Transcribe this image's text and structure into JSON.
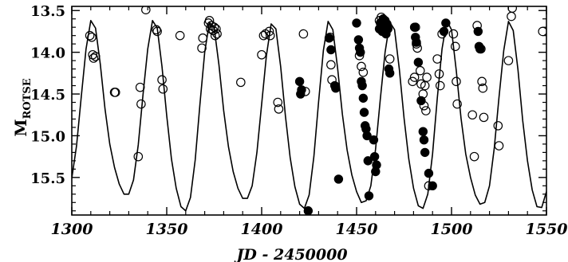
{
  "chart_data": {
    "type": "scatter",
    "title": "",
    "xlabel": "JD - 2450000",
    "ylabel_main": "M",
    "ylabel_sub": "ROTSE",
    "xlim": [
      1300,
      1550
    ],
    "ylim": [
      15.95,
      13.45
    ],
    "y_inverted": true,
    "x_ticks": [
      1300,
      1350,
      1400,
      1450,
      1500,
      1550
    ],
    "x_tick_labels": [
      "1300",
      "1350",
      "1400",
      "1450",
      "1500",
      "1550"
    ],
    "y_ticks": [
      13.5,
      14.0,
      14.5,
      15.0,
      15.5
    ],
    "y_tick_labels": [
      "13.5",
      "14.0",
      "14.5",
      "15.0",
      "15.5"
    ],
    "grid": false,
    "series": [
      {
        "marker": "open-circle",
        "points": [
          [
            1309.5,
            13.8
          ],
          [
            1310.5,
            13.82
          ],
          [
            1311.0,
            14.03
          ],
          [
            1311.5,
            14.07
          ],
          [
            1312.5,
            14.05
          ],
          [
            1322.5,
            14.48
          ],
          [
            1323.0,
            14.48
          ],
          [
            1335.0,
            15.25
          ],
          [
            1336.0,
            14.42
          ],
          [
            1336.5,
            14.62
          ],
          [
            1339.0,
            13.49
          ],
          [
            1344.5,
            13.73
          ],
          [
            1345.0,
            13.75
          ],
          [
            1347.5,
            14.33
          ],
          [
            1348.0,
            14.44
          ],
          [
            1357.0,
            13.8
          ],
          [
            1368.5,
            13.95
          ],
          [
            1369.0,
            13.83
          ],
          [
            1372.0,
            13.65
          ],
          [
            1372.5,
            13.62
          ],
          [
            1373.0,
            13.72
          ],
          [
            1373.5,
            13.68
          ],
          [
            1374.5,
            13.74
          ],
          [
            1375.0,
            13.7
          ],
          [
            1375.5,
            13.8
          ],
          [
            1376.0,
            13.72
          ],
          [
            1376.5,
            13.78
          ],
          [
            1389.0,
            14.36
          ],
          [
            1400.0,
            14.03
          ],
          [
            1401.0,
            13.8
          ],
          [
            1402.0,
            13.78
          ],
          [
            1404.0,
            13.75
          ],
          [
            1404.5,
            13.8
          ],
          [
            1408.5,
            14.6
          ],
          [
            1409.0,
            14.68
          ],
          [
            1422.0,
            13.78
          ],
          [
            1423.0,
            14.47
          ],
          [
            1436.0,
            13.82
          ],
          [
            1436.5,
            14.15
          ],
          [
            1437.0,
            14.33
          ],
          [
            1451.5,
            14.04
          ],
          [
            1452.5,
            14.17
          ],
          [
            1453.5,
            14.24
          ],
          [
            1462.0,
            13.62
          ],
          [
            1463.0,
            13.58
          ],
          [
            1467.5,
            14.08
          ],
          [
            1479.5,
            14.35
          ],
          [
            1480.5,
            14.3
          ],
          [
            1481.0,
            13.7
          ],
          [
            1481.5,
            13.9
          ],
          [
            1482.0,
            13.95
          ],
          [
            1483.5,
            14.22
          ],
          [
            1484.0,
            14.38
          ],
          [
            1485.0,
            14.5
          ],
          [
            1485.5,
            14.64
          ],
          [
            1486.0,
            14.4
          ],
          [
            1486.5,
            14.7
          ],
          [
            1487.0,
            14.3
          ],
          [
            1488.0,
            15.6
          ],
          [
            1492.5,
            14.08
          ],
          [
            1493.5,
            14.26
          ],
          [
            1494.0,
            14.4
          ],
          [
            1495.0,
            13.78
          ],
          [
            1501.0,
            13.78
          ],
          [
            1502.0,
            13.93
          ],
          [
            1502.5,
            14.35
          ],
          [
            1503.0,
            14.62
          ],
          [
            1511.0,
            14.75
          ],
          [
            1512.0,
            15.25
          ],
          [
            1513.5,
            13.68
          ],
          [
            1515.5,
            13.96
          ],
          [
            1516.0,
            14.35
          ],
          [
            1516.5,
            14.43
          ],
          [
            1517.0,
            14.78
          ],
          [
            1524.5,
            14.88
          ],
          [
            1525.0,
            15.12
          ],
          [
            1530.0,
            14.1
          ],
          [
            1531.5,
            13.57
          ],
          [
            1532.0,
            13.47
          ],
          [
            1548.0,
            13.75
          ]
        ]
      },
      {
        "marker": "filled-circle",
        "points": [
          [
            1420.0,
            14.35
          ],
          [
            1420.5,
            14.5
          ],
          [
            1421.0,
            14.45
          ],
          [
            1424.5,
            15.9
          ],
          [
            1435.5,
            13.83
          ],
          [
            1436.5,
            13.97
          ],
          [
            1438.5,
            14.4
          ],
          [
            1439.0,
            14.43
          ],
          [
            1440.5,
            15.52
          ],
          [
            1450.0,
            13.65
          ],
          [
            1451.0,
            13.85
          ],
          [
            1451.5,
            13.95
          ],
          [
            1452.0,
            14.0
          ],
          [
            1452.5,
            14.35
          ],
          [
            1453.0,
            14.4
          ],
          [
            1453.5,
            14.55
          ],
          [
            1454.0,
            14.72
          ],
          [
            1454.5,
            14.88
          ],
          [
            1455.0,
            14.92
          ],
          [
            1455.5,
            15.0
          ],
          [
            1456.0,
            15.3
          ],
          [
            1456.5,
            15.72
          ],
          [
            1459.0,
            15.05
          ],
          [
            1459.5,
            15.25
          ],
          [
            1460.0,
            15.43
          ],
          [
            1460.5,
            15.35
          ],
          [
            1462.0,
            13.72
          ],
          [
            1462.5,
            13.65
          ],
          [
            1463.0,
            13.68
          ],
          [
            1463.5,
            13.75
          ],
          [
            1464.0,
            13.6
          ],
          [
            1464.5,
            13.7
          ],
          [
            1465.0,
            13.62
          ],
          [
            1465.5,
            13.78
          ],
          [
            1466.0,
            13.66
          ],
          [
            1466.5,
            13.72
          ],
          [
            1467.0,
            14.2
          ],
          [
            1467.5,
            14.25
          ],
          [
            1480.5,
            13.7
          ],
          [
            1481.0,
            13.82
          ],
          [
            1481.5,
            13.88
          ],
          [
            1482.5,
            14.12
          ],
          [
            1484.0,
            14.58
          ],
          [
            1485.0,
            14.95
          ],
          [
            1485.5,
            15.05
          ],
          [
            1486.0,
            15.2
          ],
          [
            1488.0,
            15.45
          ],
          [
            1490.0,
            15.6
          ],
          [
            1496.0,
            13.75
          ],
          [
            1497.0,
            13.65
          ],
          [
            1514.0,
            13.75
          ],
          [
            1514.5,
            13.93
          ],
          [
            1515.0,
            13.96
          ]
        ]
      },
      {
        "marker": "line",
        "x": [
          1300.0,
          1302.5,
          1305.0,
          1307.5,
          1310.0,
          1312.5,
          1315.0,
          1317.5,
          1320.0,
          1322.5,
          1325.0,
          1327.5,
          1330.0,
          1332.5,
          1335.0,
          1337.5,
          1340.0,
          1342.5,
          1345.0,
          1347.5,
          1350.0,
          1352.5,
          1355.0,
          1357.5,
          1360.0,
          1362.5,
          1365.0,
          1367.5,
          1370.0,
          1372.5,
          1375.0,
          1377.5,
          1380.0,
          1382.5,
          1385.0,
          1387.5,
          1390.0,
          1392.5,
          1395.0,
          1397.5,
          1400.0,
          1402.5,
          1405.0,
          1407.5,
          1410.0,
          1412.5,
          1415.0,
          1417.5,
          1420.0,
          1422.5,
          1425.0,
          1427.5,
          1430.0,
          1432.5,
          1435.0,
          1437.5,
          1440.0,
          1442.5,
          1445.0,
          1447.5,
          1450.0,
          1452.5,
          1455.0,
          1457.5,
          1460.0,
          1462.5,
          1465.0,
          1467.5,
          1470.0,
          1472.5,
          1475.0,
          1477.5,
          1480.0,
          1482.5,
          1485.0,
          1487.5,
          1490.0,
          1492.5,
          1495.0,
          1497.5,
          1500.0,
          1502.5,
          1505.0,
          1507.5,
          1510.0,
          1512.5,
          1515.0,
          1517.5,
          1520.0,
          1522.5,
          1525.0,
          1527.5,
          1530.0,
          1532.5,
          1535.0,
          1537.5,
          1540.0,
          1542.5,
          1545.0,
          1547.5,
          1550.0
        ],
        "y": [
          15.51,
          15.12,
          14.53,
          13.96,
          13.62,
          13.71,
          14.14,
          14.68,
          15.1,
          15.38,
          15.58,
          15.7,
          15.7,
          15.53,
          15.11,
          14.51,
          13.96,
          13.62,
          13.71,
          14.17,
          14.76,
          15.28,
          15.63,
          15.85,
          15.9,
          15.74,
          15.29,
          14.62,
          14.0,
          13.64,
          13.71,
          14.15,
          14.7,
          15.13,
          15.43,
          15.63,
          15.75,
          15.75,
          15.6,
          15.2,
          14.62,
          14.04,
          13.66,
          13.72,
          14.17,
          14.76,
          15.26,
          15.61,
          15.82,
          15.87,
          15.71,
          15.25,
          14.59,
          13.98,
          13.63,
          13.73,
          14.19,
          14.74,
          15.17,
          15.47,
          15.67,
          15.8,
          15.78,
          15.6,
          15.16,
          14.56,
          14.0,
          13.64,
          13.73,
          14.2,
          14.79,
          15.28,
          15.63,
          15.84,
          15.87,
          15.7,
          15.22,
          14.55,
          13.96,
          13.62,
          13.73,
          14.22,
          14.79,
          15.22,
          15.5,
          15.71,
          15.82,
          15.8,
          15.6,
          15.15,
          14.54,
          13.98,
          13.63,
          13.74,
          14.21,
          14.82,
          15.3,
          15.65,
          15.85,
          15.86,
          15.67
        ]
      }
    ]
  }
}
